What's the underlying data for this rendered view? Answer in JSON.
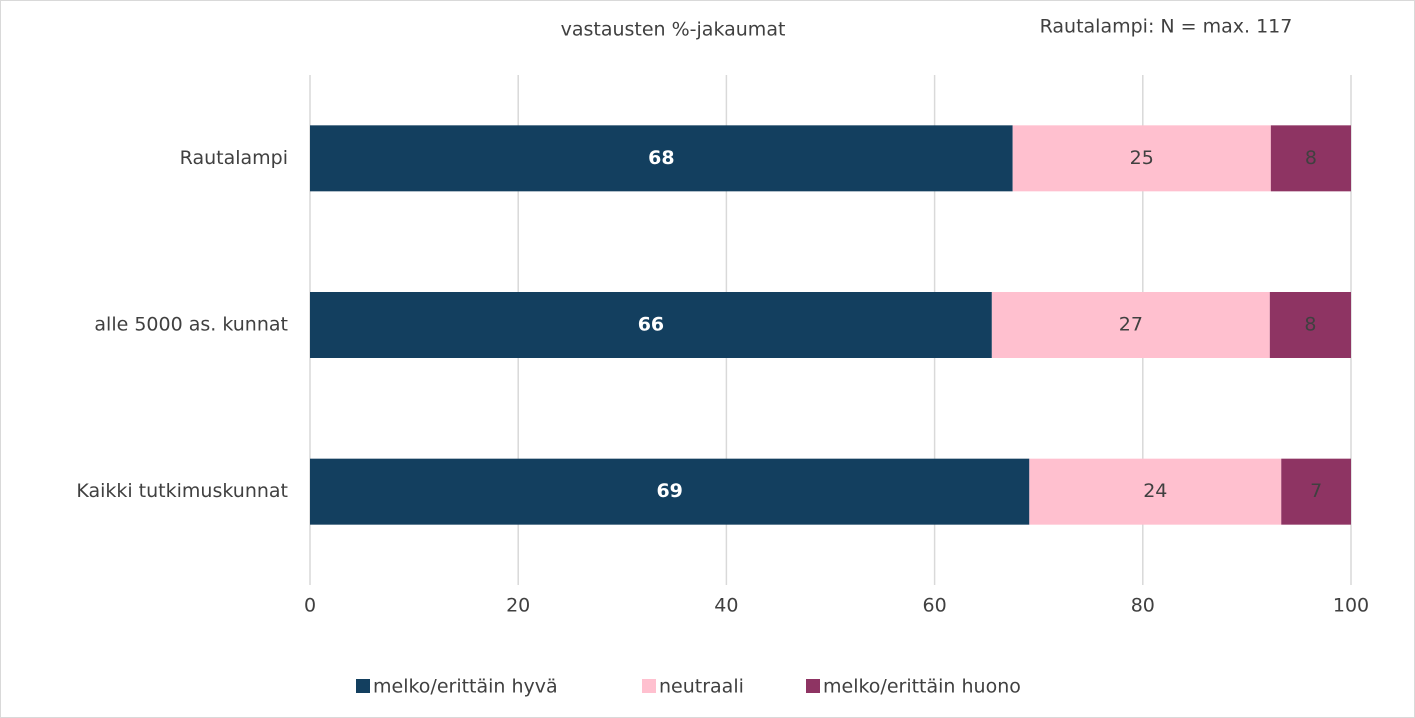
{
  "chart_data": {
    "type": "stacked_barh",
    "title": "vastausten %-jakaumat",
    "annotation": "Rautalampi: N = max. 117",
    "categories": [
      "Rautalampi",
      "alle 5000 as. kunnat",
      "Kaikki tutkimuskunnat"
    ],
    "series": [
      {
        "name": "melko/erittäin hyvä",
        "color": "#133f5f",
        "values": [
          67.5,
          65.5,
          69.1
        ],
        "value_labels": [
          "68",
          "66",
          "69"
        ]
      },
      {
        "name": "neutraali",
        "color": "#ffc0cf",
        "values": [
          24.8,
          26.7,
          24.2
        ],
        "value_labels": [
          "25",
          "27",
          "24"
        ]
      },
      {
        "name": "melko/erittäin huono",
        "color": "#8e3463",
        "values": [
          7.7,
          7.8,
          6.7
        ],
        "value_labels": [
          "8",
          "8",
          "7"
        ]
      }
    ],
    "xlim": [
      0,
      100
    ],
    "xticks": [
      0,
      20,
      40,
      60,
      80,
      100
    ],
    "grid": true
  }
}
